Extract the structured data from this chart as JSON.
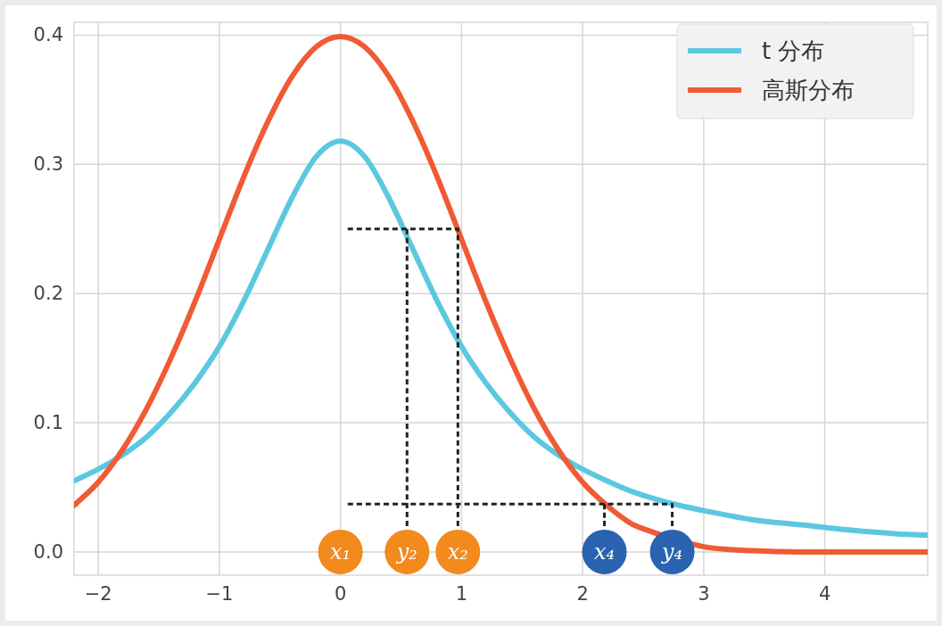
{
  "chart_data": {
    "type": "line",
    "xlim": [
      -2.2,
      4.85
    ],
    "ylim": [
      -0.018,
      0.41
    ],
    "xticks": [
      {
        "value": -2,
        "label": "−2"
      },
      {
        "value": -1,
        "label": "−1"
      },
      0,
      1,
      2,
      3,
      4
    ],
    "yticks": [
      {
        "value": 0,
        "label": "0.0"
      },
      0.1,
      0.2,
      0.3,
      0.4
    ],
    "grid": true,
    "legend": "top right",
    "line_style": "solid",
    "series": [
      {
        "name": "t 分布",
        "color": "#5bc8e0",
        "x": [
          -2.2,
          -2.0,
          -1.8,
          -1.6,
          -1.4,
          -1.2,
          -1.0,
          -0.8,
          -0.6,
          -0.4,
          -0.2,
          0,
          0.2,
          0.4,
          0.6,
          0.8,
          1.0,
          1.2,
          1.4,
          1.6,
          1.8,
          2.0,
          2.2,
          2.4,
          2.6,
          2.8,
          3.0,
          3.4,
          3.8,
          4.2,
          4.6,
          4.85
        ],
        "values": [
          0.055,
          0.064,
          0.075,
          0.089,
          0.108,
          0.131,
          0.159,
          0.194,
          0.234,
          0.274,
          0.306,
          0.318,
          0.306,
          0.274,
          0.234,
          0.194,
          0.159,
          0.131,
          0.108,
          0.089,
          0.075,
          0.064,
          0.055,
          0.047,
          0.041,
          0.036,
          0.032,
          0.025,
          0.021,
          0.017,
          0.014,
          0.013
        ]
      },
      {
        "name": "高斯分布",
        "color": "#f05a35",
        "x": [
          -2.2,
          -2.0,
          -1.8,
          -1.6,
          -1.4,
          -1.2,
          -1.0,
          -0.8,
          -0.6,
          -0.4,
          -0.2,
          0,
          0.2,
          0.4,
          0.6,
          0.8,
          1.0,
          1.2,
          1.4,
          1.6,
          1.8,
          2.0,
          2.2,
          2.4,
          2.5,
          3.0,
          3.4,
          3.8,
          4.2,
          4.6,
          4.85
        ],
        "values": [
          0.036,
          0.054,
          0.079,
          0.111,
          0.15,
          0.194,
          0.242,
          0.29,
          0.333,
          0.368,
          0.391,
          0.399,
          0.391,
          0.368,
          0.333,
          0.29,
          0.242,
          0.194,
          0.15,
          0.111,
          0.079,
          0.054,
          0.036,
          0.022,
          0.018,
          0.004,
          0.001,
          0.0,
          0.0,
          0.0,
          0.0
        ]
      },
      {
        "type": "line",
        "line_style": "dashed",
        "color": "#222222",
        "x": [
          0.06,
          0.97,
          0.97
        ],
        "values": [
          0.25,
          0.25,
          0.02
        ]
      },
      {
        "type": "line",
        "line_style": "dashed",
        "color": "#222222",
        "x": [
          0.55,
          0.55
        ],
        "values": [
          0.25,
          0.02
        ]
      },
      {
        "type": "line",
        "line_style": "dashed",
        "color": "#222222",
        "x": [
          0.06,
          2.74,
          2.74
        ],
        "values": [
          0.037,
          0.037,
          0.02
        ]
      },
      {
        "type": "line",
        "line_style": "dashed",
        "color": "#222222",
        "x": [
          2.18,
          2.18
        ],
        "values": [
          0.037,
          0.02
        ]
      },
      {
        "type": "scatter",
        "marker": "circle",
        "color": "#f28a1e",
        "x": [
          0,
          0.55,
          0.97
        ],
        "values": [
          0,
          0,
          0
        ],
        "value_labels": [
          "x₁",
          "y₂",
          "x₂"
        ]
      },
      {
        "type": "scatter",
        "marker": "circle",
        "color": "#2a63b0",
        "x": [
          2.18,
          2.74
        ],
        "values": [
          0,
          0
        ],
        "value_labels": [
          "x₄",
          "y₄"
        ]
      }
    ]
  }
}
